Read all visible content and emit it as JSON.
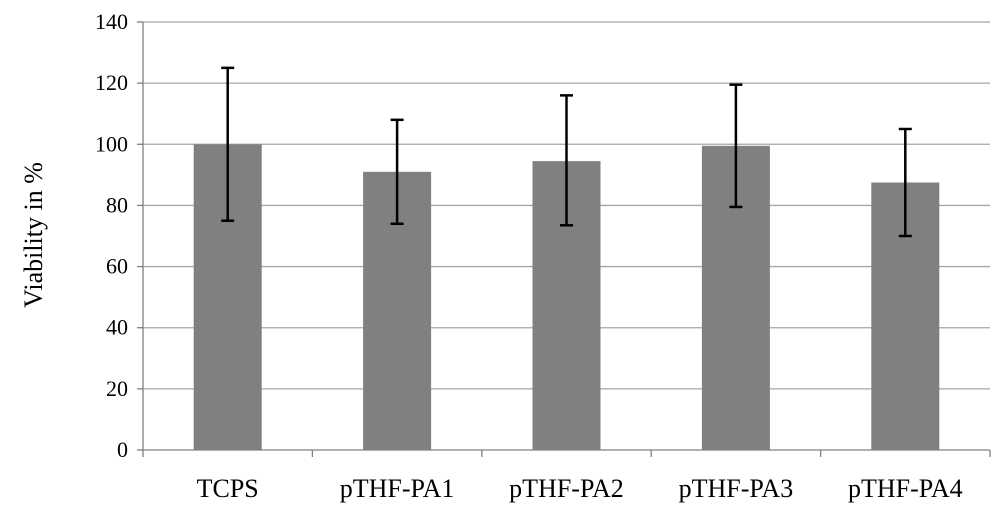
{
  "chart_data": {
    "type": "bar",
    "title": "",
    "xlabel": "",
    "ylabel": "Viability in %",
    "ylim": [
      0,
      140
    ],
    "yticks": [
      0,
      20,
      40,
      60,
      80,
      100,
      120,
      140
    ],
    "grid": true,
    "categories": [
      "TCPS",
      "pTHF-PA1",
      "pTHF-PA2",
      "pTHF-PA3",
      "pTHF-PA4"
    ],
    "values": [
      100,
      91,
      94.5,
      99.5,
      87.5
    ],
    "error_low": [
      75,
      74,
      73.5,
      79.5,
      70
    ],
    "error_high": [
      125,
      108,
      116,
      119.5,
      105
    ],
    "bar_color": "#808080",
    "grid_color": "#a6a6a6",
    "error_color": "#000000"
  }
}
